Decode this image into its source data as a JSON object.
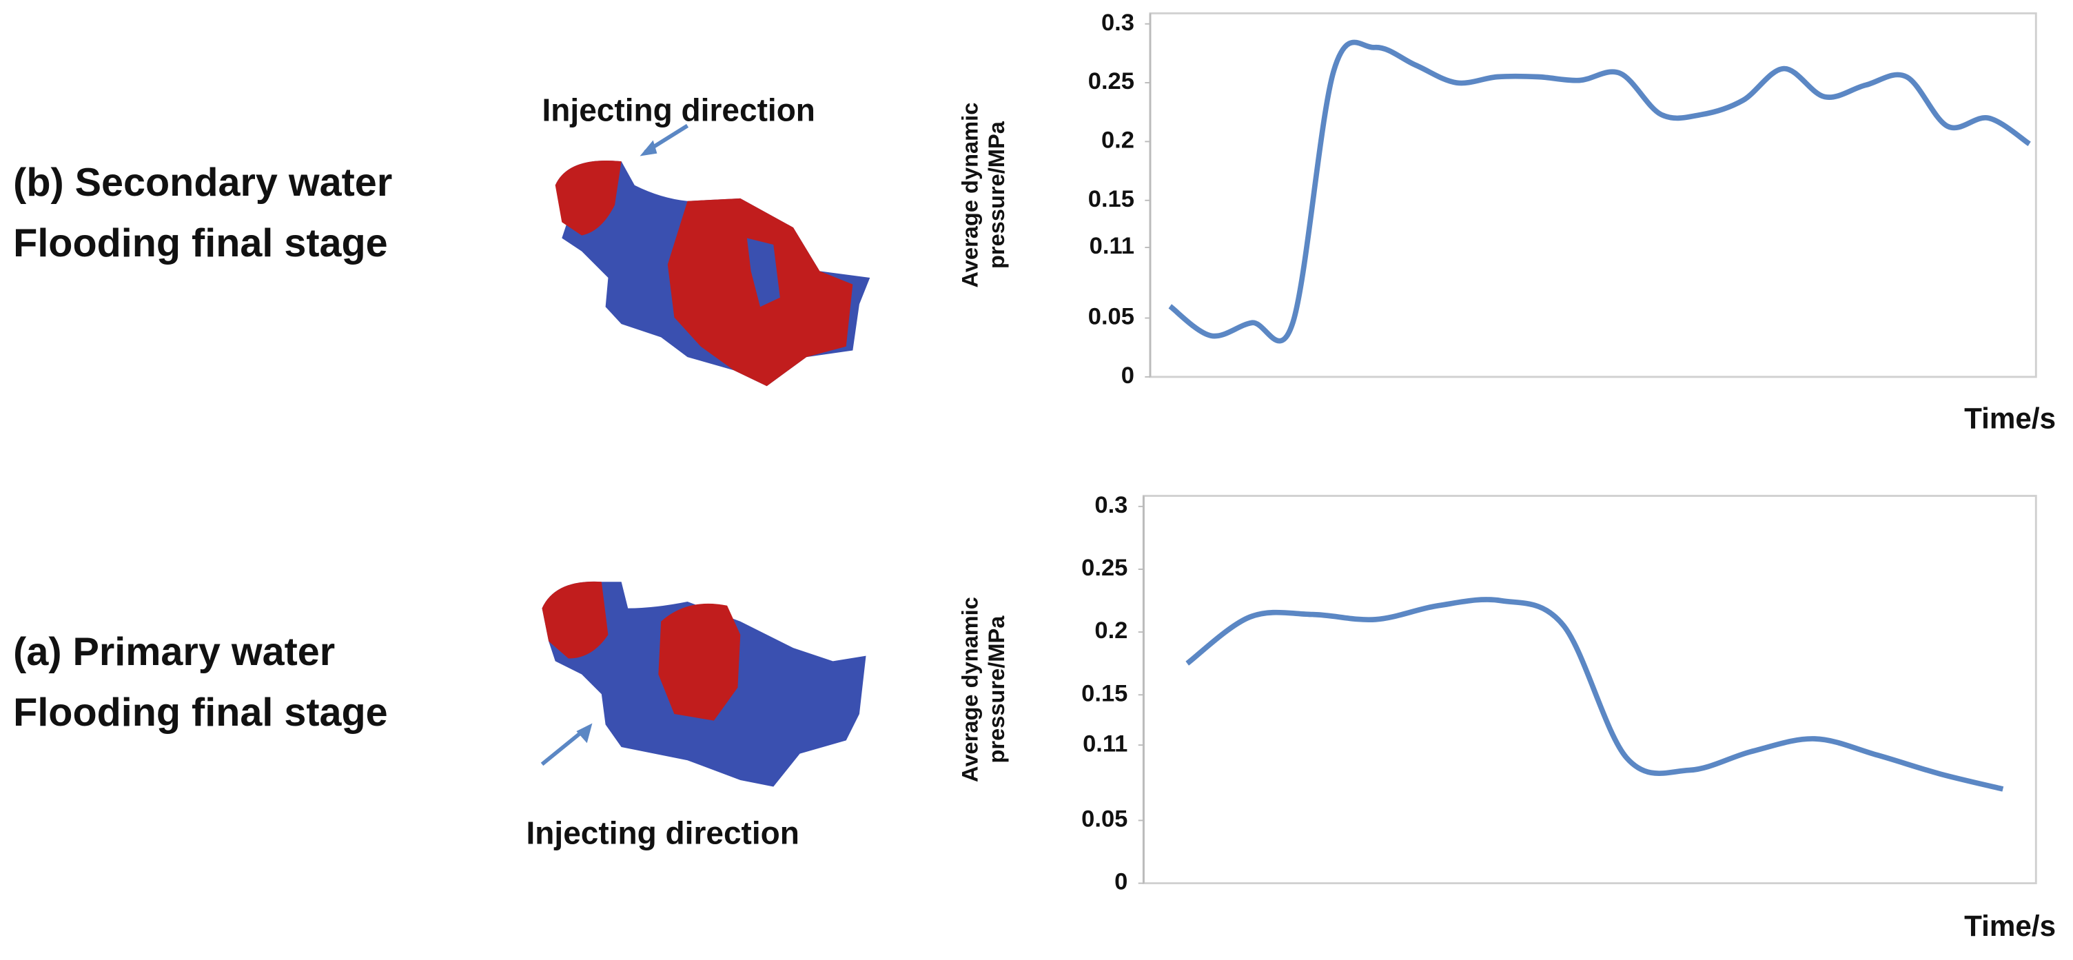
{
  "chart_data": [
    {
      "type": "line",
      "title": [
        "(b) Secondary water",
        "Flooding final stage"
      ],
      "annotation": "Injecting direction",
      "y_label": [
        "Average dynamic",
        "pressure/MPa"
      ],
      "x_label": "Time/s",
      "color": "#5b87c4",
      "values": [
        0.06,
        0.035,
        0.046,
        0.046,
        0.26,
        0.28,
        0.265,
        0.25,
        0.255,
        0.255,
        0.252,
        0.258,
        0.223,
        0.223,
        0.235,
        0.262,
        0.238,
        0.248,
        0.255,
        0.213,
        0.22,
        0.198
      ],
      "ylim": [
        0,
        0.3
      ],
      "yticks": [
        0,
        0.05,
        0.11,
        0.15,
        0.2,
        0.25,
        0.3
      ]
    },
    {
      "type": "line",
      "title": [
        "(a)  Primary water",
        "Flooding final stage"
      ],
      "annotation": "Injecting direction",
      "y_label": [
        "Average dynamic",
        "pressure/MPa"
      ],
      "x_label": "Time/s",
      "color": "#5b87c4",
      "values": [
        0.175,
        0.212,
        0.214,
        0.21,
        0.221,
        0.225,
        0.205,
        0.1,
        0.09,
        0.105,
        0.115,
        0.102,
        0.087,
        0.075
      ],
      "ylim": [
        0,
        0.3
      ],
      "yticks": [
        0,
        0.05,
        0.11,
        0.15,
        0.2,
        0.25,
        0.3
      ]
    }
  ]
}
